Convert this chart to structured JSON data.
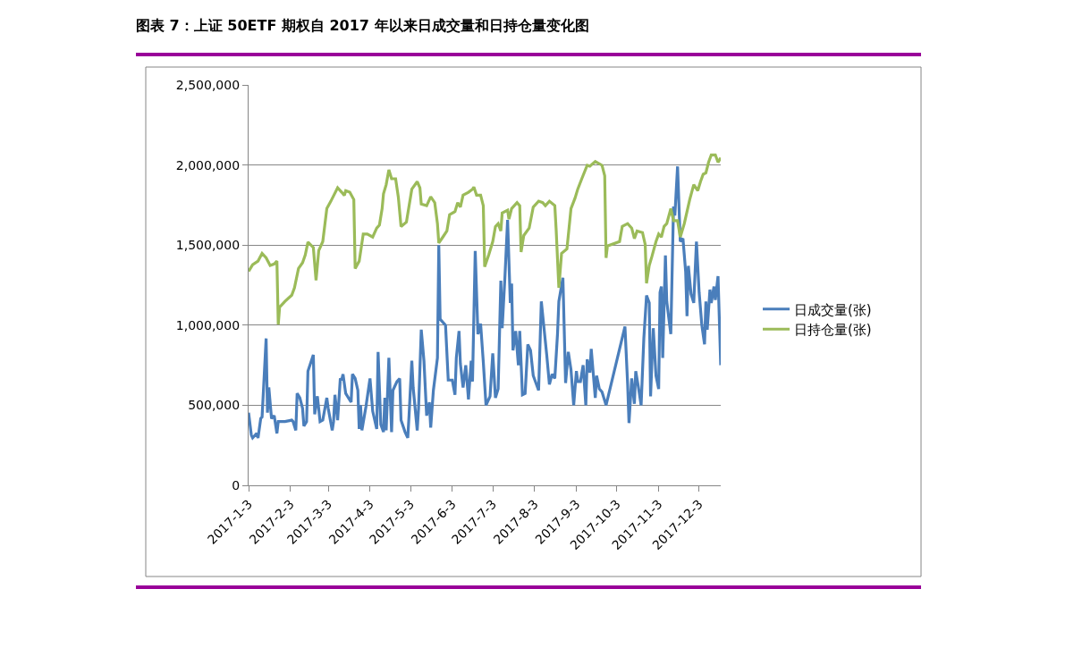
{
  "chart_data": {
    "type": "line",
    "title": "图表 7：上证 50ETF 期权自 2017 年以来日成交量和日持仓量变化图",
    "xlim": [
      "2017-01-03",
      "2017-12-19"
    ],
    "xticks": [
      {
        "value": "2017-01-03",
        "label": "2017-1-3"
      },
      {
        "value": "2017-02-03",
        "label": "2017-2-3"
      },
      {
        "value": "2017-03-03",
        "label": "2017-3-3"
      },
      {
        "value": "2017-04-03",
        "label": "2017-4-3"
      },
      {
        "value": "2017-05-03",
        "label": "2017-5-3"
      },
      {
        "value": "2017-06-03",
        "label": "2017-6-3"
      },
      {
        "value": "2017-07-03",
        "label": "2017-7-3"
      },
      {
        "value": "2017-08-03",
        "label": "2017-8-3"
      },
      {
        "value": "2017-09-03",
        "label": "2017-9-3"
      },
      {
        "value": "2017-10-03",
        "label": "2017-10-3"
      },
      {
        "value": "2017-11-03",
        "label": "2017-11-3"
      },
      {
        "value": "2017-12-03",
        "label": "2017-12-3"
      }
    ],
    "ylim": [
      0,
      2500000
    ],
    "yticks": [
      0,
      {
        "value": 500000,
        "label": "500,000"
      },
      {
        "value": 1000000,
        "label": "1,000,000"
      },
      {
        "value": 1500000,
        "label": "1,500,000"
      },
      {
        "value": 2000000,
        "label": "2,000,000"
      },
      {
        "value": 2500000,
        "label": "2,500,000"
      }
    ],
    "grid": "y",
    "legend": "right",
    "series": [
      {
        "name": "日成交量(张)",
        "color": "#4a7ebb",
        "x": [
          "2017-01-03",
          "2017-01-05",
          "2017-01-06",
          "2017-01-09",
          "2017-01-10",
          "2017-01-12",
          "2017-01-13",
          "2017-01-16",
          "2017-01-17",
          "2017-01-18",
          "2017-01-20",
          "2017-01-22",
          "2017-01-24",
          "2017-01-25",
          "2017-01-30",
          "2017-02-04",
          "2017-02-05",
          "2017-02-07",
          "2017-02-08",
          "2017-02-10",
          "2017-02-12",
          "2017-02-13",
          "2017-02-15",
          "2017-02-16",
          "2017-02-20",
          "2017-02-21",
          "2017-02-23",
          "2017-02-25",
          "2017-02-27",
          "2017-03-02",
          "2017-03-03",
          "2017-03-06",
          "2017-03-07",
          "2017-03-08",
          "2017-03-10",
          "2017-03-12",
          "2017-03-13",
          "2017-03-14",
          "2017-03-16",
          "2017-03-20",
          "2017-03-21",
          "2017-03-23",
          "2017-03-25",
          "2017-03-26",
          "2017-03-27",
          "2017-03-28",
          "2017-03-31",
          "2017-04-03",
          "2017-04-05",
          "2017-04-08",
          "2017-04-09",
          "2017-04-11",
          "2017-04-13",
          "2017-04-14",
          "2017-04-15",
          "2017-04-17",
          "2017-04-19",
          "2017-04-20",
          "2017-04-23",
          "2017-04-25",
          "2017-04-26",
          "2017-04-29",
          "2017-05-01",
          "2017-05-02",
          "2017-05-04",
          "2017-05-05",
          "2017-05-08",
          "2017-05-09",
          "2017-05-11",
          "2017-05-13",
          "2017-05-15",
          "2017-05-17",
          "2017-05-18",
          "2017-05-20",
          "2017-05-23",
          "2017-05-24",
          "2017-05-25",
          "2017-05-29",
          "2017-05-31",
          "2017-06-03",
          "2017-06-05",
          "2017-06-06",
          "2017-06-08",
          "2017-06-09",
          "2017-06-11",
          "2017-06-13",
          "2017-06-15",
          "2017-06-17",
          "2017-06-18",
          "2017-06-20",
          "2017-06-22",
          "2017-06-24",
          "2017-06-26",
          "2017-06-28",
          "2017-07-01",
          "2017-07-03",
          "2017-07-05",
          "2017-07-07",
          "2017-07-09",
          "2017-07-10",
          "2017-07-12",
          "2017-07-14",
          "2017-07-16",
          "2017-07-17",
          "2017-07-18",
          "2017-07-20",
          "2017-07-22",
          "2017-07-23",
          "2017-07-25",
          "2017-07-27",
          "2017-07-29",
          "2017-07-31",
          "2017-08-02",
          "2017-08-06",
          "2017-08-08",
          "2017-08-10",
          "2017-08-12",
          "2017-08-14",
          "2017-08-16",
          "2017-08-18",
          "2017-08-20",
          "2017-08-21",
          "2017-08-24",
          "2017-08-26",
          "2017-08-28",
          "2017-08-30",
          "2017-09-01",
          "2017-09-03",
          "2017-09-04",
          "2017-09-06",
          "2017-09-08",
          "2017-09-10",
          "2017-09-11",
          "2017-09-13",
          "2017-09-14",
          "2017-09-17",
          "2017-09-18",
          "2017-09-20",
          "2017-09-22",
          "2017-09-24",
          "2017-09-25",
          "2017-10-09",
          "2017-10-11",
          "2017-10-12",
          "2017-10-14",
          "2017-10-16",
          "2017-10-17",
          "2017-10-19",
          "2017-10-21",
          "2017-10-23",
          "2017-10-25",
          "2017-10-27",
          "2017-10-28",
          "2017-10-30",
          "2017-11-01",
          "2017-11-03",
          "2017-11-04",
          "2017-11-05",
          "2017-11-06",
          "2017-11-08",
          "2017-11-09",
          "2017-11-12",
          "2017-11-14",
          "2017-11-15",
          "2017-11-17",
          "2017-11-19",
          "2017-11-21",
          "2017-11-23",
          "2017-11-24",
          "2017-11-25",
          "2017-11-27",
          "2017-11-29",
          "2017-12-01",
          "2017-12-03",
          "2017-12-05",
          "2017-12-07",
          "2017-12-08",
          "2017-12-09",
          "2017-12-11",
          "2017-12-12",
          "2017-12-14",
          "2017-12-15",
          "2017-12-17",
          "2017-12-19"
        ],
        "values": [
          454000,
          315000,
          296000,
          324000,
          296000,
          417000,
          426000,
          917000,
          454000,
          611000,
          417000,
          435000,
          324000,
          398000,
          398000,
          407000,
          398000,
          343000,
          574000,
          546000,
          481000,
          370000,
          398000,
          713000,
          815000,
          444000,
          556000,
          398000,
          407000,
          546000,
          481000,
          343000,
          398000,
          565000,
          407000,
          667000,
          657000,
          694000,
          574000,
          519000,
          694000,
          667000,
          593000,
          352000,
          500000,
          343000,
          491000,
          667000,
          463000,
          352000,
          833000,
          380000,
          333000,
          546000,
          343000,
          796000,
          333000,
          593000,
          648000,
          667000,
          407000,
          333000,
          296000,
          444000,
          778000,
          611000,
          343000,
          481000,
          972000,
          778000,
          435000,
          519000,
          361000,
          593000,
          796000,
          1500000,
          1037000,
          1000000,
          657000,
          657000,
          565000,
          796000,
          963000,
          759000,
          611000,
          750000,
          537000,
          778000,
          648000,
          1463000,
          944000,
          1009000,
          769000,
          500000,
          556000,
          824000,
          546000,
          602000,
          1278000,
          981000,
          1296000,
          1657000,
          1139000,
          1259000,
          843000,
          963000,
          750000,
          963000,
          565000,
          574000,
          880000,
          843000,
          685000,
          593000,
          1148000,
          981000,
          815000,
          630000,
          694000,
          667000,
          944000,
          1148000,
          1296000,
          639000,
          833000,
          722000,
          500000,
          713000,
          648000,
          648000,
          750000,
          500000,
          787000,
          704000,
          852000,
          546000,
          685000,
          602000,
          583000,
          528000,
          500000,
          991000,
          630000,
          389000,
          667000,
          509000,
          713000,
          611000,
          500000,
          917000,
          1185000,
          1139000,
          556000,
          981000,
          685000,
          602000,
          1204000,
          1241000,
          796000,
          1435000,
          1148000,
          944000,
          1741000,
          1685000,
          1991000,
          1522000,
          1541000,
          1333000,
          1056000,
          1370000,
          1194000,
          1139000,
          1522000,
          1204000,
          1000000,
          880000,
          1148000,
          972000,
          1222000,
          1139000,
          1241000,
          1157000,
          1306000,
          750000
        ]
      },
      {
        "name": "日持仓量(张)",
        "color": "#9bbb59",
        "x": [
          "2017-01-03",
          "2017-01-06",
          "2017-01-10",
          "2017-01-13",
          "2017-01-16",
          "2017-01-19",
          "2017-01-22",
          "2017-01-24",
          "2017-01-25",
          "2017-01-26",
          "2017-01-30",
          "2017-02-04",
          "2017-02-06",
          "2017-02-09",
          "2017-02-12",
          "2017-02-14",
          "2017-02-16",
          "2017-02-20",
          "2017-02-22",
          "2017-02-24",
          "2017-02-27",
          "2017-03-02",
          "2017-03-05",
          "2017-03-10",
          "2017-03-13",
          "2017-03-15",
          "2017-03-16",
          "2017-03-19",
          "2017-03-22",
          "2017-03-23",
          "2017-03-26",
          "2017-03-29",
          "2017-04-01",
          "2017-04-05",
          "2017-04-08",
          "2017-04-10",
          "2017-04-12",
          "2017-04-13",
          "2017-04-15",
          "2017-04-17",
          "2017-04-19",
          "2017-04-22",
          "2017-04-24",
          "2017-04-26",
          "2017-04-30",
          "2017-05-04",
          "2017-05-08",
          "2017-05-10",
          "2017-05-11",
          "2017-05-15",
          "2017-05-18",
          "2017-05-21",
          "2017-05-23",
          "2017-05-24",
          "2017-05-27",
          "2017-05-30",
          "2017-06-01",
          "2017-06-05",
          "2017-06-07",
          "2017-06-09",
          "2017-06-11",
          "2017-06-15",
          "2017-06-18",
          "2017-06-19",
          "2017-06-21",
          "2017-06-24",
          "2017-06-26",
          "2017-06-27",
          "2017-06-30",
          "2017-07-03",
          "2017-07-05",
          "2017-07-07",
          "2017-07-09",
          "2017-07-10",
          "2017-07-14",
          "2017-07-15",
          "2017-07-17",
          "2017-07-21",
          "2017-07-23",
          "2017-07-24",
          "2017-07-26",
          "2017-07-30",
          "2017-08-02",
          "2017-08-06",
          "2017-08-09",
          "2017-08-11",
          "2017-08-14",
          "2017-08-18",
          "2017-08-19",
          "2017-08-21",
          "2017-08-23",
          "2017-08-27",
          "2017-08-30",
          "2017-09-02",
          "2017-09-04",
          "2017-09-07",
          "2017-09-11",
          "2017-09-13",
          "2017-09-17",
          "2017-09-22",
          "2017-09-24",
          "2017-09-25",
          "2017-09-26",
          "2017-10-05",
          "2017-10-07",
          "2017-10-11",
          "2017-10-14",
          "2017-10-16",
          "2017-10-18",
          "2017-10-22",
          "2017-10-24",
          "2017-10-25",
          "2017-10-27",
          "2017-10-29",
          "2017-11-01",
          "2017-11-03",
          "2017-11-05",
          "2017-11-07",
          "2017-11-09",
          "2017-11-12",
          "2017-11-14",
          "2017-11-17",
          "2017-11-19",
          "2017-11-22",
          "2017-11-26",
          "2017-11-29",
          "2017-12-02",
          "2017-12-04",
          "2017-12-06",
          "2017-12-08",
          "2017-12-10",
          "2017-12-12",
          "2017-12-15",
          "2017-12-17",
          "2017-12-19"
        ],
        "values": [
          1336000,
          1377000,
          1400000,
          1448000,
          1420000,
          1373000,
          1382000,
          1400000,
          1004000,
          1112000,
          1149000,
          1187000,
          1233000,
          1354000,
          1390000,
          1438000,
          1519000,
          1485000,
          1280000,
          1466000,
          1522000,
          1728000,
          1774000,
          1858000,
          1830000,
          1810000,
          1840000,
          1830000,
          1784000,
          1354000,
          1400000,
          1569000,
          1569000,
          1550000,
          1606000,
          1625000,
          1728000,
          1820000,
          1877000,
          1970000,
          1914000,
          1914000,
          1800000,
          1616000,
          1644000,
          1849000,
          1896000,
          1858000,
          1756000,
          1746000,
          1802000,
          1765000,
          1634000,
          1513000,
          1550000,
          1588000,
          1690000,
          1709000,
          1765000,
          1737000,
          1812000,
          1830000,
          1849000,
          1862000,
          1812000,
          1812000,
          1746000,
          1364000,
          1438000,
          1522000,
          1616000,
          1634000,
          1588000,
          1700000,
          1718000,
          1662000,
          1728000,
          1765000,
          1746000,
          1457000,
          1560000,
          1606000,
          1737000,
          1774000,
          1765000,
          1746000,
          1774000,
          1746000,
          1597000,
          1233000,
          1448000,
          1476000,
          1728000,
          1793000,
          1849000,
          1914000,
          1998000,
          1993000,
          2022000,
          1998000,
          1933000,
          1420000,
          1494000,
          1522000,
          1616000,
          1634000,
          1606000,
          1541000,
          1588000,
          1578000,
          1504000,
          1261000,
          1373000,
          1429000,
          1522000,
          1569000,
          1550000,
          1616000,
          1634000,
          1728000,
          1653000,
          1653000,
          1550000,
          1634000,
          1784000,
          1877000,
          1840000,
          1896000,
          1942000,
          1951000,
          2017000,
          2063000,
          2063000,
          2017000,
          2045000
        ]
      }
    ]
  }
}
